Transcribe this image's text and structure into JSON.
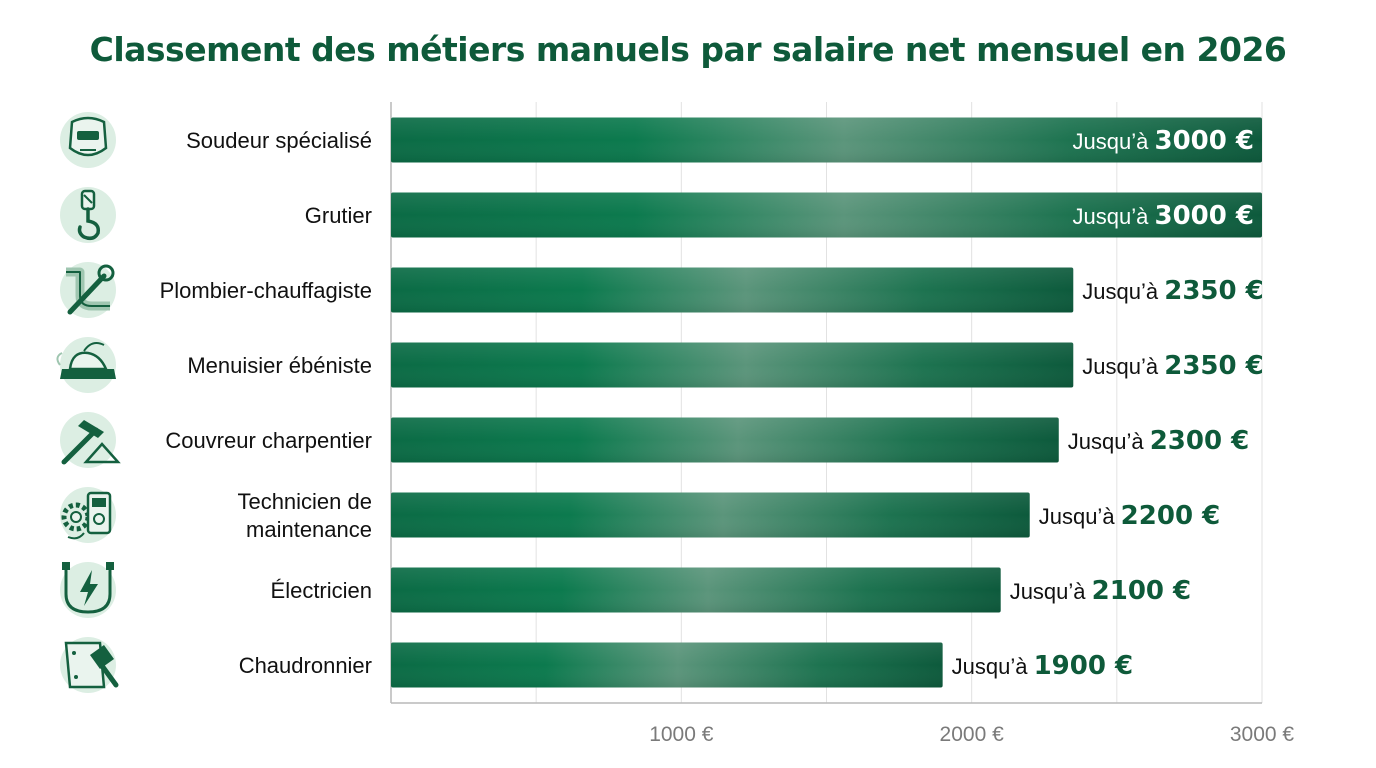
{
  "chart_data": {
    "type": "bar",
    "orientation": "horizontal",
    "title": "Classement des métiers manuels par salaire net mensuel en 2026",
    "categories": [
      "Soudeur spécialisé",
      "Grutier",
      "Plombier-chauffagiste",
      "Menuisier ébéniste",
      "Couvreur charpentier",
      "Technicien de maintenance",
      "Électricien",
      "Chaudronnier"
    ],
    "category_lines": [
      [
        "Soudeur spécialisé"
      ],
      [
        "Grutier"
      ],
      [
        "Plombier-chauffagiste"
      ],
      [
        "Menuisier ébéniste"
      ],
      [
        "Couvreur charpentier"
      ],
      [
        "Technicien de",
        "maintenance"
      ],
      [
        "Électricien"
      ],
      [
        "Chaudronnier"
      ]
    ],
    "icons": [
      "welding-mask-icon",
      "crane-hook-icon",
      "pipe-wrench-icon",
      "wood-plane-icon",
      "hammer-roof-icon",
      "gear-multimeter-icon",
      "plug-lightning-icon",
      "metal-sheet-hammer-icon"
    ],
    "values": [
      3000,
      3000,
      2350,
      2350,
      2300,
      2200,
      2100,
      1900
    ],
    "value_labels": [
      {
        "prefix": "Jusqu’à",
        "amount": "3000 €"
      },
      {
        "prefix": "Jusqu’à",
        "amount": "3000 €"
      },
      {
        "prefix": "Jusqu’à",
        "amount": "2350 €"
      },
      {
        "prefix": "Jusqu’à",
        "amount": "2350 €"
      },
      {
        "prefix": "Jusqu’à",
        "amount": "2300 €"
      },
      {
        "prefix": "Jusqu’à",
        "amount": "2200 €"
      },
      {
        "prefix": "Jusqu’à",
        "amount": "2100 €"
      },
      {
        "prefix": "Jusqu’à",
        "amount": "1900 €"
      }
    ],
    "xlim": [
      0,
      3000
    ],
    "x_ticks": [
      {
        "value": 1000,
        "label": "1000 €"
      },
      {
        "value": 2000,
        "label": "2000 €"
      },
      {
        "value": 3000,
        "label": "3000 €"
      }
    ],
    "grid_step": 500,
    "grid": true,
    "legend": "none",
    "xlabel": "",
    "ylabel": ""
  },
  "colors": {
    "title": "#0e5a3a",
    "bar_dark": "#0b6b45",
    "bar_mid": "#0c7a4e",
    "bar_light": "#5b957b",
    "bar_end": "#0d5a3c",
    "value_on_dark": "#ffffff",
    "value_outside": "#0e5a3a",
    "icon_bg": "#dceee3",
    "icon_stroke": "#14603f"
  }
}
